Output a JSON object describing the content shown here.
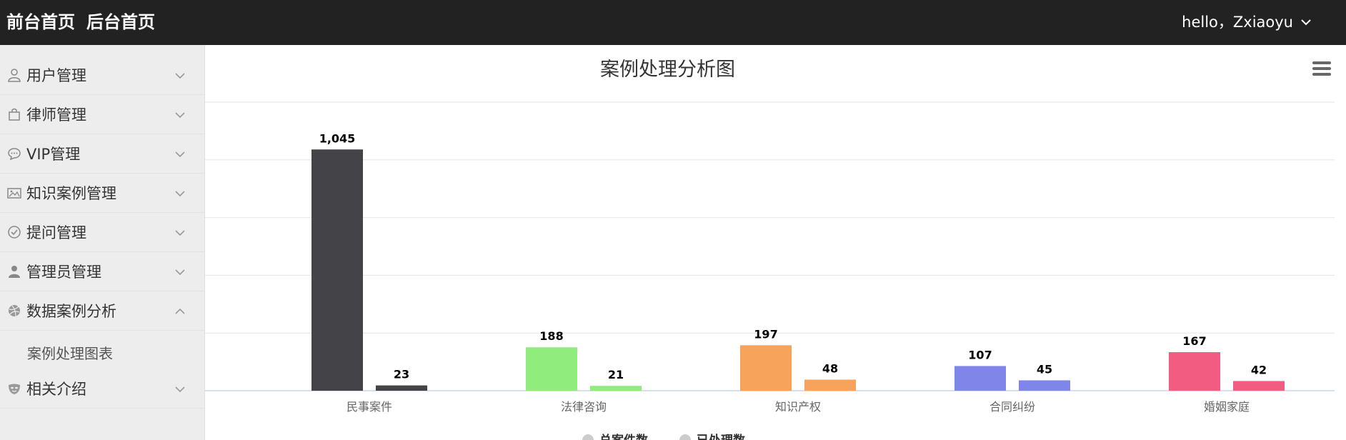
{
  "topbar": {
    "front_home": "前台首页",
    "back_home": "后台首页",
    "user_greeting": "hello，Zxiaoyu"
  },
  "sidebar": {
    "items": [
      {
        "label": "用户管理",
        "icon": "user-outline-icon",
        "expanded": false
      },
      {
        "label": "律师管理",
        "icon": "bag-icon",
        "expanded": false
      },
      {
        "label": "VIP管理",
        "icon": "chat-bubble-icon",
        "expanded": false
      },
      {
        "label": "知识案例管理",
        "icon": "image-icon",
        "expanded": false
      },
      {
        "label": "提问管理",
        "icon": "check-circle-icon",
        "expanded": false
      },
      {
        "label": "管理员管理",
        "icon": "person-icon",
        "expanded": false
      },
      {
        "label": "数据案例分析",
        "icon": "dribbble-icon",
        "expanded": true
      },
      {
        "label": "相关介绍",
        "icon": "mask-icon",
        "expanded": false
      }
    ],
    "subitems": {
      "data_analysis": [
        {
          "label": "案例处理图表"
        }
      ]
    }
  },
  "chart_data": {
    "type": "bar",
    "title": "案例处理分析图",
    "categories": [
      "民事案件",
      "法律咨询",
      "知识产权",
      "合同纠纷",
      "婚姻家庭"
    ],
    "series": [
      {
        "name": "总案件数",
        "values": [
          1045,
          188,
          197,
          107,
          167
        ]
      },
      {
        "name": "已处理数",
        "values": [
          23,
          21,
          48,
          45,
          42
        ]
      }
    ],
    "data_labels": [
      [
        "1,045",
        "188",
        "197",
        "107",
        "167"
      ],
      [
        "23",
        "21",
        "48",
        "45",
        "42"
      ]
    ],
    "colors": [
      "#434348",
      "#90ed7d",
      "#f7a35c",
      "#8085e9",
      "#f15c80"
    ],
    "ylim": [
      0,
      1250
    ],
    "grid": true,
    "legend_position": "bottom-center"
  }
}
